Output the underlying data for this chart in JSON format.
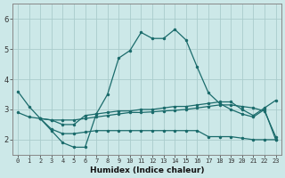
{
  "xlabel": "Humidex (Indice chaleur)",
  "xlim": [
    -0.5,
    23.5
  ],
  "ylim": [
    1.5,
    6.5
  ],
  "background_color": "#cce8e8",
  "grid_color": "#aacccc",
  "line_color": "#1a6b6b",
  "xticks": [
    0,
    1,
    2,
    3,
    4,
    5,
    6,
    7,
    8,
    9,
    10,
    11,
    12,
    13,
    14,
    15,
    16,
    17,
    18,
    19,
    20,
    21,
    22,
    23
  ],
  "yticks": [
    2,
    3,
    4,
    5,
    6
  ],
  "line1_x": [
    0,
    1,
    2,
    3,
    4,
    5,
    6,
    7,
    8,
    9,
    10,
    11,
    12,
    13,
    14,
    15,
    16,
    17,
    18,
    19,
    20,
    21,
    22,
    23
  ],
  "line1_y": [
    3.6,
    3.1,
    2.7,
    2.3,
    1.9,
    1.75,
    1.75,
    2.85,
    3.5,
    4.7,
    4.95,
    5.55,
    5.35,
    5.35,
    5.65,
    5.3,
    4.4,
    3.55,
    3.2,
    3.0,
    2.85,
    2.75,
    3.0,
    2.0
  ],
  "line2_x": [
    0,
    1,
    2,
    3,
    4,
    5,
    6,
    7,
    8,
    9,
    10,
    11,
    12,
    13,
    14,
    15,
    16,
    17,
    18,
    19,
    20,
    21,
    22,
    23
  ],
  "line2_y": [
    2.9,
    2.75,
    2.7,
    2.65,
    2.5,
    2.5,
    2.8,
    2.85,
    2.9,
    2.95,
    2.95,
    3.0,
    3.0,
    3.05,
    3.1,
    3.1,
    3.15,
    3.2,
    3.25,
    3.25,
    3.0,
    2.8,
    3.05,
    3.3
  ],
  "line3_x": [
    2,
    3,
    4,
    5,
    6,
    7,
    8,
    9,
    10,
    11,
    12,
    13,
    14,
    15,
    16,
    17,
    18,
    19,
    20,
    21,
    22,
    23
  ],
  "line3_y": [
    2.7,
    2.35,
    2.2,
    2.2,
    2.25,
    2.3,
    2.3,
    2.3,
    2.3,
    2.3,
    2.3,
    2.3,
    2.3,
    2.3,
    2.3,
    2.1,
    2.1,
    2.1,
    2.05,
    2.0,
    2.0,
    2.0
  ],
  "line4_x": [
    2,
    3,
    4,
    5,
    6,
    7,
    8,
    9,
    10,
    11,
    12,
    13,
    14,
    15,
    16,
    17,
    18,
    19,
    20,
    21,
    22,
    23
  ],
  "line4_y": [
    2.7,
    2.65,
    2.65,
    2.65,
    2.7,
    2.75,
    2.8,
    2.85,
    2.9,
    2.9,
    2.92,
    2.95,
    2.97,
    3.0,
    3.05,
    3.1,
    3.15,
    3.15,
    3.1,
    3.05,
    2.95,
    2.1
  ]
}
